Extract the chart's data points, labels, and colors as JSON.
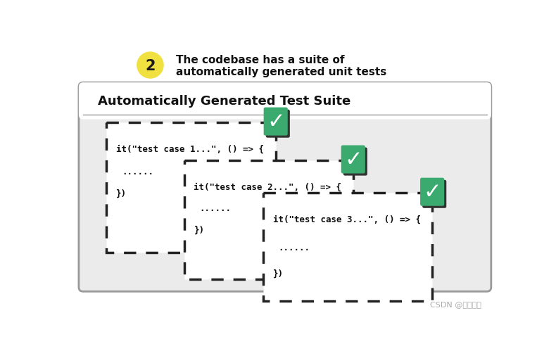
{
  "bg_color": "#ffffff",
  "header_text_line1": "The codebase has a suite of",
  "header_text_line2": "automatically generated unit tests",
  "number_label": "2",
  "number_bg": "#f0e040",
  "main_box_bg": "#ebebeb",
  "main_box_edge": "#999999",
  "main_box_title": "Automatically Generated Test Suite",
  "dashed_box_color": "#222222",
  "code_color": "#111111",
  "check_green": "#3aaa6e",
  "check_shadow": "#333333",
  "footer_text": "CSDN @程序边界",
  "footer_color": "#aaaaaa"
}
